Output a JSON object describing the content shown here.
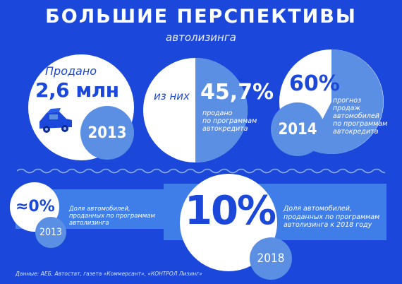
{
  "header": {
    "title": "БОЛЬШИЕ ПЕРСПЕКТИВЫ",
    "subtitle": "автолизинга"
  },
  "sold": {
    "label": "Продано",
    "value": "2,6 млн",
    "year": "2013"
  },
  "credit": {
    "prefix": "из них",
    "value": "45,7%",
    "caption": "продано по программам автокредита",
    "line1": "продано",
    "line2": "по программам",
    "line3": "автокредита"
  },
  "forecast": {
    "value": "60%",
    "year": "2014",
    "line1": "прогноз",
    "line2": "продаж",
    "line3": "автомобилей",
    "line4": "по программам",
    "line5": "автокредита"
  },
  "leasing_now": {
    "value": "≈0%",
    "year": "2013",
    "line1": "Доля автомобилей,",
    "line2": "проданных по программам",
    "line3": "автолизинга"
  },
  "leasing_future": {
    "value": "10%",
    "year": "2018",
    "line1": "Доля автомобилей,",
    "line2": "проданных по программам",
    "line3": "автолизинга к 2018 году"
  },
  "footer": {
    "source": "Данные: АЕБ, Автостат, газета «Коммерсант», «КОНТРОЛ Лизинг»"
  },
  "colors": {
    "background": "#1b48da",
    "accent": "#5b8fe3",
    "band": "#3f7de8"
  },
  "icons": [
    "car-icon"
  ]
}
